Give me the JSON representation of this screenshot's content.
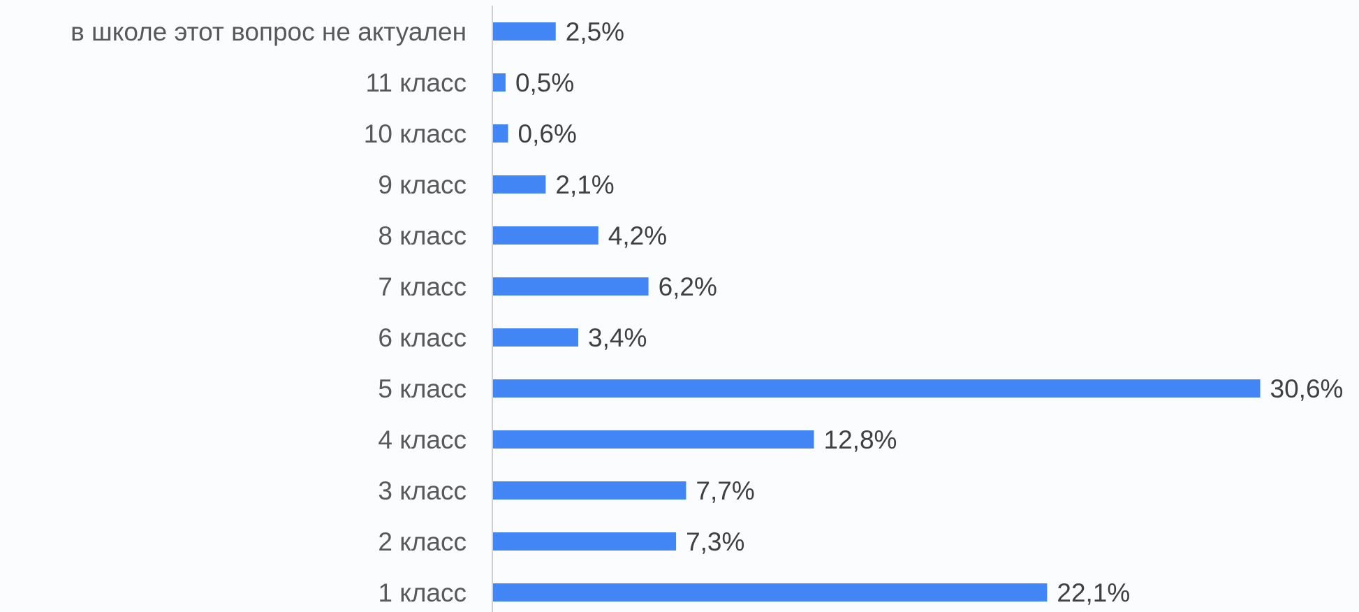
{
  "chart_data": {
    "type": "barh",
    "categories": [
      "в школе этот вопрос не актуален",
      "11 класс",
      "10 класс",
      "9 класс",
      "8 класс",
      "7 класс",
      "6 класс",
      "5 класс",
      "4 класс",
      "3 класс",
      "2 класс",
      "1 класс"
    ],
    "values": [
      2.5,
      0.5,
      0.6,
      2.1,
      4.2,
      6.2,
      3.4,
      30.6,
      12.8,
      7.7,
      7.3,
      22.1
    ],
    "value_labels": [
      "2,5%",
      "0,5%",
      "0,6%",
      "2,1%",
      "4,2%",
      "6,2%",
      "3,4%",
      "30,6%",
      "12,8%",
      "7,7%",
      "7,3%",
      "22,1%"
    ],
    "color": "#4285f4"
  }
}
